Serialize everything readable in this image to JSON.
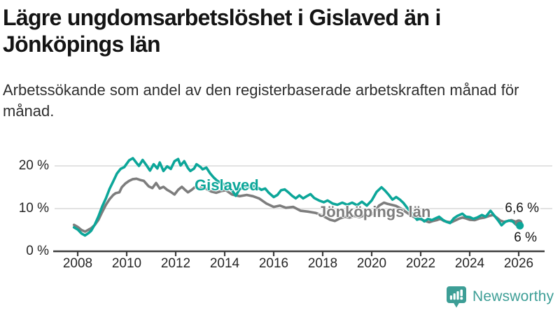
{
  "header": {
    "title": "Lägre ungdomsarbetslöshet i Gislaved än i Jönköpings län",
    "subtitle": "Arbetssökande som andel av den registerbaserade arbetskraften månad för månad."
  },
  "chart_data": {
    "type": "line",
    "title": "Lägre ungdomsarbetslöshet i Gislaved än i Jönköpings län",
    "xlabel": "",
    "ylabel": "",
    "xlim": [
      2007.8,
      2026.6
    ],
    "ylim": [
      0,
      23
    ],
    "grid": "horizontal",
    "legend_position": "inline-labels",
    "axis_color": "#3d3d3d",
    "gridline_color": "#d8d8d8",
    "x_ticks": [
      {
        "value": 2008,
        "label": "2008"
      },
      {
        "value": 2010,
        "label": "2010"
      },
      {
        "value": 2012,
        "label": "2012"
      },
      {
        "value": 2014,
        "label": "2014"
      },
      {
        "value": 2016,
        "label": "2016"
      },
      {
        "value": 2018,
        "label": "2018"
      },
      {
        "value": 2020,
        "label": "2020"
      },
      {
        "value": 2022,
        "label": "2022"
      },
      {
        "value": 2024,
        "label": "2024"
      },
      {
        "value": 2026,
        "label": "2026"
      }
    ],
    "y_ticks": [
      {
        "value": 0,
        "label": "0 %"
      },
      {
        "value": 10,
        "label": "10 %"
      },
      {
        "value": 20,
        "label": "20 %"
      }
    ],
    "series": [
      {
        "name": "Gislaved",
        "color": "#0ca699",
        "end_label": "6 %",
        "end_value": 6.0,
        "points": [
          [
            2007.85,
            5.6
          ],
          [
            2008.0,
            5.1
          ],
          [
            2008.15,
            4.2
          ],
          [
            2008.3,
            3.7
          ],
          [
            2008.45,
            4.3
          ],
          [
            2008.55,
            4.8
          ],
          [
            2008.7,
            6.3
          ],
          [
            2008.85,
            8.2
          ],
          [
            2009.0,
            10.5
          ],
          [
            2009.15,
            12.4
          ],
          [
            2009.3,
            14.6
          ],
          [
            2009.45,
            16.4
          ],
          [
            2009.6,
            18.2
          ],
          [
            2009.75,
            19.3
          ],
          [
            2009.9,
            19.7
          ],
          [
            2010.0,
            20.5
          ],
          [
            2010.1,
            21.3
          ],
          [
            2010.25,
            21.8
          ],
          [
            2010.4,
            20.7
          ],
          [
            2010.5,
            20.0
          ],
          [
            2010.65,
            21.4
          ],
          [
            2010.8,
            20.2
          ],
          [
            2010.95,
            18.9
          ],
          [
            2011.1,
            20.4
          ],
          [
            2011.25,
            19.4
          ],
          [
            2011.35,
            20.8
          ],
          [
            2011.5,
            18.8
          ],
          [
            2011.65,
            19.9
          ],
          [
            2011.8,
            19.3
          ],
          [
            2011.95,
            21.1
          ],
          [
            2012.1,
            21.6
          ],
          [
            2012.2,
            20.1
          ],
          [
            2012.35,
            21.1
          ],
          [
            2012.5,
            19.5
          ],
          [
            2012.6,
            18.8
          ],
          [
            2012.75,
            19.4
          ],
          [
            2012.85,
            20.4
          ],
          [
            2013.0,
            19.8
          ],
          [
            2013.1,
            19.2
          ],
          [
            2013.25,
            19.6
          ],
          [
            2013.4,
            18.3
          ],
          [
            2013.55,
            17.3
          ],
          [
            2013.7,
            16.5
          ],
          [
            2013.9,
            15.9
          ],
          [
            2014.1,
            15.4
          ],
          [
            2014.3,
            14.3
          ],
          [
            2014.45,
            13.0
          ],
          [
            2014.6,
            14.5
          ],
          [
            2014.8,
            15.2
          ],
          [
            2015.0,
            15.0
          ],
          [
            2015.2,
            15.3
          ],
          [
            2015.35,
            14.9
          ],
          [
            2015.5,
            14.4
          ],
          [
            2015.65,
            14.7
          ],
          [
            2015.8,
            13.7
          ],
          [
            2016.0,
            12.7
          ],
          [
            2016.15,
            13.2
          ],
          [
            2016.3,
            14.3
          ],
          [
            2016.45,
            14.5
          ],
          [
            2016.6,
            13.8
          ],
          [
            2016.75,
            13.0
          ],
          [
            2016.9,
            12.4
          ],
          [
            2017.05,
            13.1
          ],
          [
            2017.2,
            12.4
          ],
          [
            2017.35,
            12.9
          ],
          [
            2017.5,
            13.4
          ],
          [
            2017.65,
            12.5
          ],
          [
            2017.85,
            11.9
          ],
          [
            2018.05,
            11.5
          ],
          [
            2018.2,
            11.9
          ],
          [
            2018.4,
            11.2
          ],
          [
            2018.6,
            10.9
          ],
          [
            2018.8,
            11.4
          ],
          [
            2019.0,
            10.9
          ],
          [
            2019.2,
            11.4
          ],
          [
            2019.4,
            10.8
          ],
          [
            2019.6,
            11.6
          ],
          [
            2019.8,
            10.7
          ],
          [
            2020.0,
            11.9
          ],
          [
            2020.2,
            13.9
          ],
          [
            2020.4,
            15.0
          ],
          [
            2020.55,
            14.2
          ],
          [
            2020.7,
            13.2
          ],
          [
            2020.85,
            12.1
          ],
          [
            2021.0,
            12.7
          ],
          [
            2021.15,
            12.1
          ],
          [
            2021.3,
            11.3
          ],
          [
            2021.5,
            9.8
          ],
          [
            2021.7,
            8.5
          ],
          [
            2021.85,
            7.4
          ],
          [
            2022.0,
            7.7
          ],
          [
            2022.15,
            7.0
          ],
          [
            2022.3,
            7.6
          ],
          [
            2022.45,
            7.3
          ],
          [
            2022.6,
            7.7
          ],
          [
            2022.75,
            8.1
          ],
          [
            2022.9,
            7.4
          ],
          [
            2023.05,
            6.9
          ],
          [
            2023.2,
            6.6
          ],
          [
            2023.35,
            7.7
          ],
          [
            2023.5,
            8.3
          ],
          [
            2023.7,
            8.8
          ],
          [
            2023.85,
            8.1
          ],
          [
            2024.0,
            8.0
          ],
          [
            2024.15,
            7.6
          ],
          [
            2024.3,
            7.9
          ],
          [
            2024.5,
            8.5
          ],
          [
            2024.65,
            8.1
          ],
          [
            2024.85,
            9.5
          ],
          [
            2025.0,
            8.4
          ],
          [
            2025.15,
            7.3
          ],
          [
            2025.3,
            6.1
          ],
          [
            2025.45,
            6.9
          ],
          [
            2025.6,
            7.2
          ],
          [
            2025.75,
            7.0
          ],
          [
            2025.9,
            6.2
          ],
          [
            2026.05,
            6.0
          ]
        ]
      },
      {
        "name": "Jönköpings län",
        "color": "#7d7d7d",
        "end_label": "6,6 %",
        "end_value": 6.6,
        "points": [
          [
            2007.85,
            6.2
          ],
          [
            2008.0,
            5.7
          ],
          [
            2008.15,
            5.0
          ],
          [
            2008.3,
            4.6
          ],
          [
            2008.45,
            5.1
          ],
          [
            2008.55,
            5.4
          ],
          [
            2008.7,
            6.2
          ],
          [
            2008.85,
            7.4
          ],
          [
            2009.0,
            9.2
          ],
          [
            2009.15,
            10.9
          ],
          [
            2009.3,
            12.2
          ],
          [
            2009.45,
            13.2
          ],
          [
            2009.55,
            13.6
          ],
          [
            2009.7,
            13.8
          ],
          [
            2009.8,
            15.0
          ],
          [
            2009.95,
            15.9
          ],
          [
            2010.1,
            16.5
          ],
          [
            2010.25,
            16.9
          ],
          [
            2010.4,
            17.0
          ],
          [
            2010.55,
            16.7
          ],
          [
            2010.7,
            16.5
          ],
          [
            2010.9,
            15.2
          ],
          [
            2011.05,
            14.8
          ],
          [
            2011.2,
            16.0
          ],
          [
            2011.35,
            14.7
          ],
          [
            2011.5,
            15.1
          ],
          [
            2011.65,
            14.4
          ],
          [
            2011.8,
            13.9
          ],
          [
            2011.95,
            13.3
          ],
          [
            2012.1,
            14.4
          ],
          [
            2012.25,
            15.1
          ],
          [
            2012.4,
            14.3
          ],
          [
            2012.5,
            13.8
          ],
          [
            2012.65,
            14.4
          ],
          [
            2012.8,
            15.1
          ],
          [
            2012.95,
            14.6
          ],
          [
            2013.1,
            15.2
          ],
          [
            2013.25,
            14.6
          ],
          [
            2013.45,
            14.0
          ],
          [
            2013.65,
            13.7
          ],
          [
            2013.85,
            14.1
          ],
          [
            2014.05,
            14.3
          ],
          [
            2014.3,
            13.3
          ],
          [
            2014.6,
            12.9
          ],
          [
            2014.9,
            13.2
          ],
          [
            2015.15,
            12.9
          ],
          [
            2015.4,
            12.4
          ],
          [
            2015.7,
            11.2
          ],
          [
            2016.0,
            10.4
          ],
          [
            2016.25,
            10.7
          ],
          [
            2016.5,
            10.2
          ],
          [
            2016.8,
            10.4
          ],
          [
            2017.1,
            9.5
          ],
          [
            2017.4,
            9.3
          ],
          [
            2017.7,
            9.0
          ],
          [
            2017.9,
            8.6
          ],
          [
            2018.1,
            8.0
          ],
          [
            2018.3,
            7.4
          ],
          [
            2018.5,
            7.1
          ],
          [
            2018.7,
            7.7
          ],
          [
            2018.9,
            8.1
          ],
          [
            2019.1,
            7.9
          ],
          [
            2019.3,
            8.3
          ],
          [
            2019.5,
            8.0
          ],
          [
            2019.7,
            8.4
          ],
          [
            2019.9,
            8.2
          ],
          [
            2020.1,
            9.1
          ],
          [
            2020.3,
            10.7
          ],
          [
            2020.5,
            11.4
          ],
          [
            2020.65,
            11.1
          ],
          [
            2020.8,
            10.9
          ],
          [
            2021.0,
            10.6
          ],
          [
            2021.2,
            10.0
          ],
          [
            2021.4,
            9.2
          ],
          [
            2021.6,
            8.4
          ],
          [
            2021.8,
            7.8
          ],
          [
            2022.0,
            7.5
          ],
          [
            2022.2,
            7.1
          ],
          [
            2022.35,
            6.8
          ],
          [
            2022.5,
            7.1
          ],
          [
            2022.65,
            7.3
          ],
          [
            2022.8,
            7.6
          ],
          [
            2022.95,
            7.1
          ],
          [
            2023.1,
            6.9
          ],
          [
            2023.25,
            6.8
          ],
          [
            2023.4,
            7.2
          ],
          [
            2023.55,
            7.6
          ],
          [
            2023.7,
            7.9
          ],
          [
            2023.85,
            7.7
          ],
          [
            2024.0,
            7.4
          ],
          [
            2024.2,
            7.3
          ],
          [
            2024.4,
            7.7
          ],
          [
            2024.6,
            7.9
          ],
          [
            2024.8,
            8.3
          ],
          [
            2024.95,
            8.5
          ],
          [
            2025.1,
            7.9
          ],
          [
            2025.25,
            7.2
          ],
          [
            2025.4,
            6.9
          ],
          [
            2025.55,
            7.1
          ],
          [
            2025.7,
            7.3
          ],
          [
            2025.85,
            7.0
          ],
          [
            2026.0,
            6.6
          ]
        ]
      }
    ]
  },
  "footer": {
    "brand": "Newsworthy",
    "brand_color": "#3d9e96",
    "logo_icon": "bar-chart-pin-icon"
  }
}
